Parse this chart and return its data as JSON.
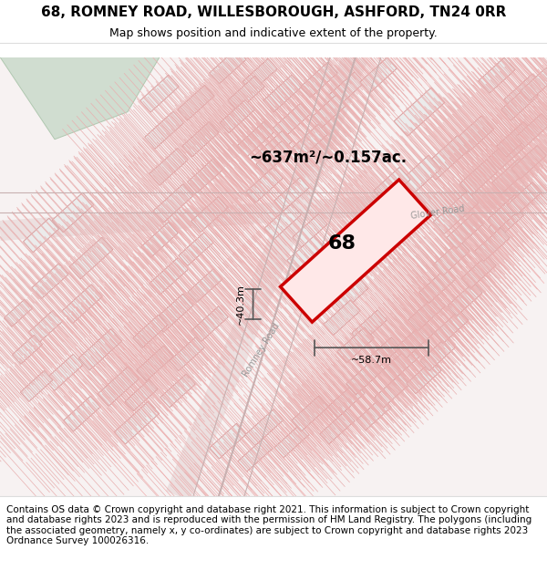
{
  "title": "68, ROMNEY ROAD, WILLESBOROUGH, ASHFORD, TN24 0RR",
  "subtitle": "Map shows position and indicative extent of the property.",
  "footnote": "Contains OS data © Crown copyright and database right 2021. This information is subject to Crown copyright and database rights 2023 and is reproduced with the permission of HM Land Registry. The polygons (including the associated geometry, namely x, y co-ordinates) are subject to Crown copyright and database rights 2023 Ordnance Survey 100026316.",
  "area_label": "~637m²/~0.157ac.",
  "width_label": "~58.7m",
  "height_label": "~40.3m",
  "number_label": "68",
  "bg_color": "#f5f0f0",
  "map_bg": "#f5f0f0",
  "road_color_light": "#f2c4c4",
  "road_color_dark": "#e8a0a0",
  "building_fill": "#e8e8e8",
  "building_stroke": "#d8a0a0",
  "green_fill": "#d0e0d0",
  "highlight_color": "#cc0000",
  "highlight_fill": "#ffd0d0",
  "dim_color": "#555555",
  "road_label_color": "#888888",
  "title_fontsize": 11,
  "subtitle_fontsize": 9,
  "footnote_fontsize": 7.5
}
